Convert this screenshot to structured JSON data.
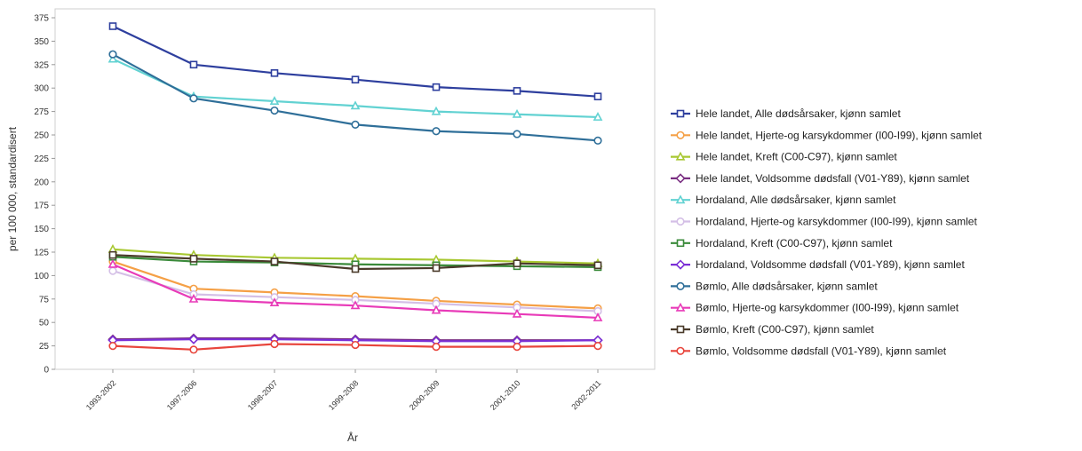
{
  "chart_data": {
    "type": "line",
    "title": "",
    "xlabel": "År",
    "ylabel": "per 100 000, standardisert",
    "categories": [
      "1993-2002",
      "1997-2006",
      "1998-2007",
      "1999-2008",
      "2000-2009",
      "2001-2010",
      "2002-2011"
    ],
    "ylim": [
      0,
      375
    ],
    "yticks": [
      0,
      25,
      50,
      75,
      100,
      125,
      150,
      175,
      200,
      225,
      250,
      275,
      300,
      325,
      350,
      375
    ],
    "grid": false,
    "legend_position": "right",
    "series": [
      {
        "name": "Hele landet, Alle dødsårsaker, kjønn samlet",
        "color": "#2e3f9e",
        "marker": "square",
        "values": [
          366,
          325,
          316,
          309,
          301,
          297,
          291
        ]
      },
      {
        "name": "Hele landet, Hjerte-og karsykdommer (I00-I99), kjønn samlet",
        "color": "#f5a046",
        "marker": "circle",
        "values": [
          115,
          86,
          82,
          78,
          73,
          69,
          65
        ]
      },
      {
        "name": "Hele landet, Kreft (C00-C97), kjønn samlet",
        "color": "#a8c832",
        "marker": "triangle",
        "values": [
          128,
          122,
          119,
          118,
          117,
          115,
          113
        ]
      },
      {
        "name": "Hele landet, Voldsomme dødsfall (V01-Y89), kjønn samlet",
        "color": "#7a2f82",
        "marker": "diamond",
        "values": [
          32,
          33,
          33,
          32,
          31,
          31,
          31
        ]
      },
      {
        "name": "Hordaland, Alle dødsårsaker, kjønn samlet",
        "color": "#62d2d2",
        "marker": "triangle",
        "values": [
          331,
          291,
          286,
          281,
          275,
          272,
          269
        ]
      },
      {
        "name": "Hordaland, Hjerte-og karsykdommer (I00-I99), kjønn samlet",
        "color": "#d4bfe6",
        "marker": "circle",
        "values": [
          105,
          80,
          77,
          74,
          70,
          66,
          62
        ]
      },
      {
        "name": "Hordaland, Kreft (C00-C97), kjønn samlet",
        "color": "#3a8a3a",
        "marker": "square",
        "values": [
          120,
          115,
          114,
          112,
          111,
          110,
          109
        ]
      },
      {
        "name": "Hordaland, Voldsomme dødsfall (V01-Y89), kjønn samlet",
        "color": "#7b2fd6",
        "marker": "diamond",
        "values": [
          31,
          32,
          32,
          31,
          30,
          30,
          31
        ]
      },
      {
        "name": "Bømlo, Alle dødsårsaker, kjønn samlet",
        "color": "#2f6f99",
        "marker": "circle",
        "values": [
          336,
          289,
          276,
          261,
          254,
          251,
          244
        ]
      },
      {
        "name": "Bømlo, Hjerte-og karsykdommer (I00-I99), kjønn samlet",
        "color": "#e83ab8",
        "marker": "triangle",
        "values": [
          112,
          75,
          71,
          68,
          63,
          59,
          55
        ]
      },
      {
        "name": "Bømlo, Kreft (C00-C97), kjønn samlet",
        "color": "#4a3a2a",
        "marker": "square",
        "values": [
          122,
          118,
          115,
          107,
          108,
          113,
          111
        ]
      },
      {
        "name": "Bømlo, Voldsomme dødsfall (V01-Y89), kjønn samlet",
        "color": "#e8453c",
        "marker": "circle",
        "values": [
          25,
          21,
          27,
          26,
          24,
          24,
          25
        ]
      }
    ]
  }
}
